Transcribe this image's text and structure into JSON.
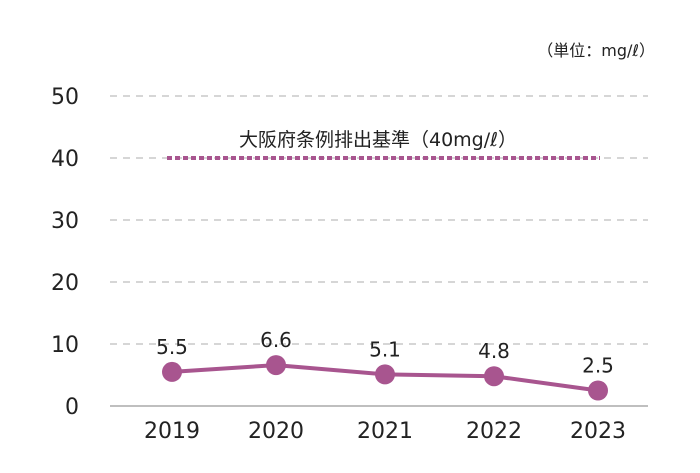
{
  "chart_data": {
    "type": "line",
    "unit_label": "（単位：mg/ℓ）",
    "categories": [
      "2019",
      "2020",
      "2021",
      "2022",
      "2023"
    ],
    "series": [
      {
        "values": [
          5.5,
          6.6,
          5.1,
          4.8,
          2.5
        ],
        "data_labels": [
          "5.5",
          "6.6",
          "5.1",
          "4.8",
          "2.5"
        ],
        "color": "#a8558f"
      }
    ],
    "ylim": [
      0,
      50
    ],
    "yticks": [
      0,
      10,
      20,
      30,
      40,
      50
    ],
    "grid": true,
    "reference_line": {
      "value": 40,
      "label": "大阪府条例排出基準（40mg/ℓ）",
      "color": "#a8558f"
    },
    "colors": {
      "gridline": "#c8c8c8",
      "axis": "#999999"
    }
  }
}
